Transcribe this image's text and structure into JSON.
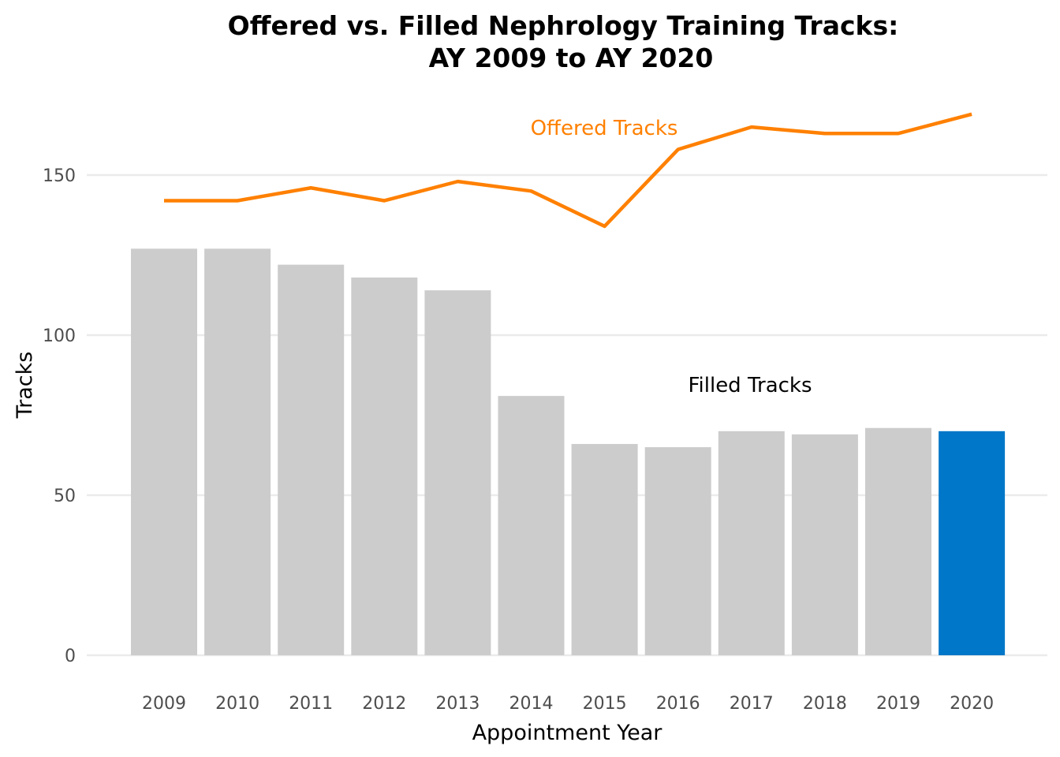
{
  "chart_data": {
    "type": "bar",
    "title": "Offered vs. Filled Nephrology Training Tracks:",
    "subtitle": "AY 2009 to AY 2020",
    "xlabel": "Appointment Year",
    "ylabel": "Tracks",
    "ylim": [
      0,
      170
    ],
    "yticks": [
      0,
      50,
      100,
      150
    ],
    "grid": true,
    "categories": [
      "2009",
      "2010",
      "2011",
      "2012",
      "2013",
      "2014",
      "2015",
      "2016",
      "2017",
      "2018",
      "2019",
      "2020"
    ],
    "series": [
      {
        "name": "Filled Tracks",
        "type": "bar",
        "values": [
          127,
          127,
          122,
          118,
          114,
          81,
          66,
          65,
          70,
          69,
          71,
          70
        ],
        "color": "#cccccc",
        "highlight_color": "#0077c8",
        "highlight_index": 11
      },
      {
        "name": "Offered Tracks",
        "type": "line",
        "values": [
          142,
          142,
          146,
          142,
          148,
          145,
          134,
          158,
          165,
          163,
          163,
          169
        ],
        "color": "#ff8000"
      }
    ],
    "annotations": [
      {
        "text": "Offered Tracks",
        "color": "#ff8000",
        "near_year": "2015",
        "near_value": 165
      },
      {
        "text": "Filled Tracks",
        "color": "#000000",
        "near_year": "2017",
        "near_value": 84
      }
    ]
  }
}
